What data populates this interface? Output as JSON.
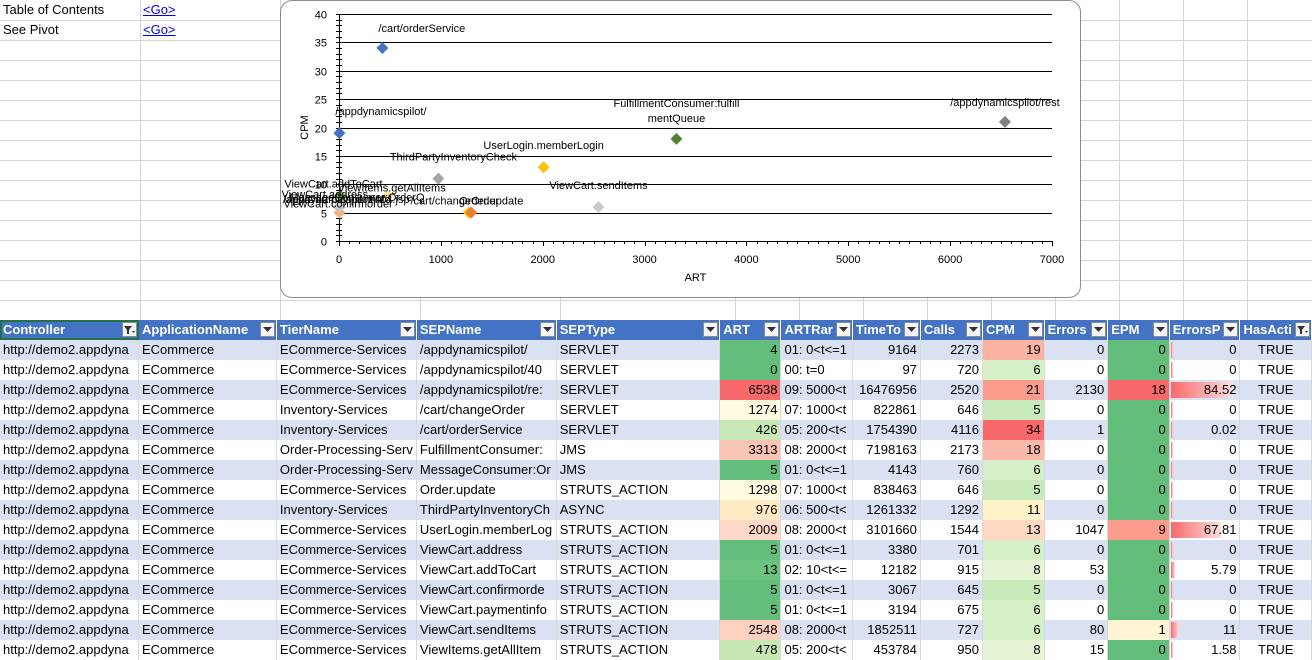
{
  "sheet": {
    "rows": [
      {
        "label": "Table of Contents",
        "link": "<Go>"
      },
      {
        "label": "See Pivot",
        "link": "<Go>"
      }
    ]
  },
  "chart_data": {
    "type": "scatter",
    "xlabel": "ART",
    "ylabel": "CPM",
    "xlim": [
      0,
      7000
    ],
    "ylim": [
      0,
      40
    ],
    "xticks": [
      "0",
      "1000",
      "2000",
      "3000",
      "4000",
      "5000",
      "6000",
      "7000"
    ],
    "yticks": [
      "0",
      "5",
      "10",
      "15",
      "20",
      "25",
      "30",
      "35",
      "40"
    ],
    "points": [
      {
        "label": "/appdynamicspilot/",
        "x": 4,
        "y": 19,
        "color": "#4472c4"
      },
      {
        "label": "/appdynamicspilot/404.jsp",
        "x": 0,
        "y": 6,
        "color": "#ed7d31"
      },
      {
        "label": "/appdynamicspilot/rest",
        "x": 6538,
        "y": 21,
        "color": "#808080"
      },
      {
        "label": "/cart/changeOrder",
        "x": 1274,
        "y": 5,
        "color": "#ffc000"
      },
      {
        "label": "/cart/orderService",
        "x": 426,
        "y": 34,
        "color": "#4472c4"
      },
      {
        "label": "FulfillmentConsumer:fulfill mentQueue",
        "x": 3313,
        "y": 18,
        "color": "#548235"
      },
      {
        "label": "MessageConsumer:OrderQ",
        "x": 5,
        "y": 6,
        "color": "#a5a5a5"
      },
      {
        "label": "Order.update",
        "x": 1298,
        "y": 5,
        "color": "#ed7d31"
      },
      {
        "label": "ThirdPartyInventoryCheck",
        "x": 976,
        "y": 11,
        "color": "#a5a5a5"
      },
      {
        "label": "UserLogin.memberLogin",
        "x": 2009,
        "y": 13,
        "color": "#ffc000"
      },
      {
        "label": "ViewCart.address",
        "x": 5,
        "y": 6,
        "color": "#5b9bd5"
      },
      {
        "label": "ViewCart.addToCart",
        "x": 13,
        "y": 8,
        "color": "#70ad47"
      },
      {
        "label": "ViewCart.confirmorder",
        "x": 5,
        "y": 5,
        "color": "#f4b183"
      },
      {
        "label": "ViewCart.paymentinfo",
        "x": 5,
        "y": 6,
        "color": "#c9c9c9"
      },
      {
        "label": "ViewCart.sendItems",
        "x": 2548,
        "y": 6,
        "color": "#c9c9c9"
      },
      {
        "label": "ViewItems.getAllItems",
        "x": 478,
        "y": 8,
        "color": "#ffe699"
      }
    ]
  },
  "table": {
    "headers": [
      "Controller",
      "ApplicationName",
      "TierName",
      "SEPName",
      "SEPType",
      "ART",
      "ARTRar",
      "TimeTo",
      "Calls",
      "CPM",
      "Errors",
      "EPM",
      "ErrorsP",
      "HasActi"
    ],
    "rows": [
      [
        "http://demo2.appdyna",
        "ECommerce",
        "ECommerce-Services",
        "/appdynamicspilot/",
        "SERVLET",
        "4",
        "01: 0<t<=1",
        "9164",
        "2273",
        "19",
        "0",
        "0",
        "0",
        "TRUE"
      ],
      [
        "http://demo2.appdyna",
        "ECommerce",
        "ECommerce-Services",
        "/appdynamicspilot/40",
        "SERVLET",
        "0",
        "00: t=0",
        "97",
        "720",
        "6",
        "0",
        "0",
        "0",
        "TRUE"
      ],
      [
        "http://demo2.appdyna",
        "ECommerce",
        "ECommerce-Services",
        "/appdynamicspilot/re:",
        "SERVLET",
        "6538",
        "09: 5000<t",
        "16476956",
        "2520",
        "21",
        "2130",
        "18",
        "84.52",
        "TRUE"
      ],
      [
        "http://demo2.appdyna",
        "ECommerce",
        "Inventory-Services",
        "/cart/changeOrder",
        "SERVLET",
        "1274",
        "07: 1000<t",
        "822861",
        "646",
        "5",
        "0",
        "0",
        "0",
        "TRUE"
      ],
      [
        "http://demo2.appdyna",
        "ECommerce",
        "Inventory-Services",
        "/cart/orderService",
        "SERVLET",
        "426",
        "05: 200<t<",
        "1754390",
        "4116",
        "34",
        "1",
        "0",
        "0.02",
        "TRUE"
      ],
      [
        "http://demo2.appdyna",
        "ECommerce",
        "Order-Processing-Serv",
        "FulfillmentConsumer:",
        "JMS",
        "3313",
        "08: 2000<t",
        "7198163",
        "2173",
        "18",
        "0",
        "0",
        "0",
        "TRUE"
      ],
      [
        "http://demo2.appdyna",
        "ECommerce",
        "Order-Processing-Serv",
        "MessageConsumer:Or",
        "JMS",
        "5",
        "01: 0<t<=1",
        "4143",
        "760",
        "6",
        "0",
        "0",
        "0",
        "TRUE"
      ],
      [
        "http://demo2.appdyna",
        "ECommerce",
        "ECommerce-Services",
        "Order.update",
        "STRUTS_ACTION",
        "1298",
        "07: 1000<t",
        "838463",
        "646",
        "5",
        "0",
        "0",
        "0",
        "TRUE"
      ],
      [
        "http://demo2.appdyna",
        "ECommerce",
        "Inventory-Services",
        "ThirdPartyInventoryCh",
        "ASYNC",
        "976",
        "06: 500<t<",
        "1261332",
        "1292",
        "11",
        "0",
        "0",
        "0",
        "TRUE"
      ],
      [
        "http://demo2.appdyna",
        "ECommerce",
        "ECommerce-Services",
        "UserLogin.memberLog",
        "STRUTS_ACTION",
        "2009",
        "08: 2000<t",
        "3101660",
        "1544",
        "13",
        "1047",
        "9",
        "67.81",
        "TRUE"
      ],
      [
        "http://demo2.appdyna",
        "ECommerce",
        "ECommerce-Services",
        "ViewCart.address",
        "STRUTS_ACTION",
        "5",
        "01: 0<t<=1",
        "3380",
        "701",
        "6",
        "0",
        "0",
        "0",
        "TRUE"
      ],
      [
        "http://demo2.appdyna",
        "ECommerce",
        "ECommerce-Services",
        "ViewCart.addToCart",
        "STRUTS_ACTION",
        "13",
        "02: 10<t<=",
        "12182",
        "915",
        "8",
        "53",
        "0",
        "5.79",
        "TRUE"
      ],
      [
        "http://demo2.appdyna",
        "ECommerce",
        "ECommerce-Services",
        "ViewCart.confirmorde",
        "STRUTS_ACTION",
        "5",
        "01: 0<t<=1",
        "3067",
        "645",
        "5",
        "0",
        "0",
        "0",
        "TRUE"
      ],
      [
        "http://demo2.appdyna",
        "ECommerce",
        "ECommerce-Services",
        "ViewCart.paymentinfo",
        "STRUTS_ACTION",
        "5",
        "01: 0<t<=1",
        "3194",
        "675",
        "6",
        "0",
        "0",
        "0",
        "TRUE"
      ],
      [
        "http://demo2.appdyna",
        "ECommerce",
        "ECommerce-Services",
        "ViewCart.sendItems",
        "STRUTS_ACTION",
        "2548",
        "08: 2000<t",
        "1852511",
        "727",
        "6",
        "80",
        "1",
        "11",
        "TRUE"
      ],
      [
        "http://demo2.appdyna",
        "ECommerce",
        "ECommerce-Services",
        "ViewItems.getAllItem",
        "STRUTS_ACTION",
        "478",
        "05: 200<t<",
        "453784",
        "950",
        "8",
        "15",
        "0",
        "1.58",
        "TRUE"
      ]
    ],
    "art_colors": [
      "#63be7b",
      "#63be7b",
      "#f8696b",
      "#fffbe0",
      "#c9e8b8",
      "#fac4b4",
      "#63be7b",
      "#fffbe0",
      "#ffeac4",
      "#fed9c9",
      "#63be7b",
      "#6cc27f",
      "#63be7b",
      "#63be7b",
      "#fdd0c0",
      "#c7e7b5"
    ],
    "cpm_colors": [
      "#fcb3a2",
      "#d5f0c9",
      "#fb9c8c",
      "#c9ebbb",
      "#f8696b",
      "#fcb8a8",
      "#d5f0c9",
      "#c9ebbb",
      "#fff1c8",
      "#ffd8c2",
      "#d5f0c9",
      "#e6f5d4",
      "#c9ebbb",
      "#d5f0c9",
      "#d5f0c9",
      "#e6f5d4"
    ],
    "epm_colors": [
      "#63be7b",
      "#63be7b",
      "#f8696b",
      "#63be7b",
      "#63be7b",
      "#63be7b",
      "#63be7b",
      "#63be7b",
      "#63be7b",
      "#fb9c8c",
      "#63be7b",
      "#63be7b",
      "#63be7b",
      "#63be7b",
      "#fff5d4",
      "#63be7b"
    ],
    "errorsp_bar_pct": [
      0.04,
      0.04,
      1.0,
      0.04,
      0.04,
      0.04,
      0.04,
      0.04,
      0.04,
      0.8,
      0.04,
      0.07,
      0.04,
      0.04,
      0.13,
      0.04
    ]
  }
}
